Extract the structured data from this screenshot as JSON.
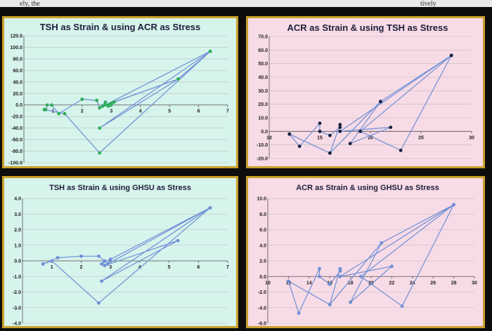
{
  "caption_fragment": "ely, the",
  "caption_fragment_right": "tively",
  "colors": {
    "background": "#0d0d0d",
    "border": "#caa02a",
    "panel_teal": "#d6f3ec",
    "panel_pink": "#f7dbe6",
    "line": "#6f8fd6",
    "marker_green": "#2fae5a",
    "marker_navy": "#16213d",
    "marker_blue": "#6f8fd6",
    "grid": "#bdbdbd"
  },
  "chart_data": [
    {
      "id": "c1",
      "type": "scatter",
      "title": "TSH as Strain & using ACR as Stress",
      "xlim": [
        0,
        7
      ],
      "ylim": [
        -100,
        120
      ],
      "xticks": [
        "1",
        "2",
        "3",
        "4",
        "5",
        "6",
        "7"
      ],
      "xtick_values": [
        1,
        2,
        3,
        4,
        5,
        6,
        7
      ],
      "yticks": [
        "120.0",
        "100.0",
        "80.0",
        "60.0",
        "40.0",
        "20.0",
        "0.0",
        "-20.0",
        "-40.0",
        "-60.0",
        "-80.0",
        "-100.0"
      ],
      "ytick_values": [
        120,
        100,
        80,
        60,
        40,
        20,
        0,
        -20,
        -40,
        -60,
        -80,
        -100
      ],
      "x_axis_at": 0,
      "grid": "horizontal",
      "marker": "green",
      "series": [
        {
          "x": [
            0.75,
            0.8,
            0.95,
            1.2,
            2.0,
            2.5,
            2.6,
            2.8,
            2.7,
            2.9,
            3.0,
            2.9,
            3.0,
            3.1,
            5.3,
            6.4,
            2.8,
            5.3,
            2.6,
            6.4,
            2.6,
            1.4,
            0.7
          ],
          "y": [
            -8,
            0,
            0,
            -15,
            10,
            8,
            -5,
            5,
            -2,
            0,
            3,
            -2,
            0,
            5,
            45,
            93,
            0,
            45,
            -40,
            93,
            -83,
            -15,
            -8
          ]
        }
      ]
    },
    {
      "id": "c2",
      "type": "scatter",
      "title": "ACR as Strain & using TSH as Stress",
      "xlim": [
        10,
        30
      ],
      "ylim": [
        -20,
        70
      ],
      "xticks": [
        "10",
        "15",
        "20",
        "25",
        "30"
      ],
      "xtick_values": [
        10,
        15,
        20,
        25,
        30
      ],
      "yticks": [
        "70.0",
        "60.0",
        "50.0",
        "40.0",
        "30.0",
        "20.0",
        "10.0",
        "0.0",
        "-10.0",
        "-20.0"
      ],
      "ytick_values": [
        70,
        60,
        50,
        40,
        30,
        20,
        10,
        0,
        -10,
        -20
      ],
      "x_axis_at": 0,
      "grid": "horizontal",
      "marker": "navy",
      "series": [
        {
          "x": [
            12,
            13,
            15,
            15,
            16,
            17,
            17,
            16,
            21,
            18,
            22,
            17,
            28,
            23,
            19,
            28,
            21,
            16,
            12
          ],
          "y": [
            -2,
            -11,
            6,
            0,
            -3,
            3,
            5,
            -16,
            22,
            -9,
            3,
            0,
            56,
            -14,
            0,
            56,
            22,
            -16,
            -2
          ]
        }
      ]
    },
    {
      "id": "c3",
      "type": "scatter",
      "title": "TSH as Strain & using GHSU as Stress",
      "xlim": [
        0,
        7
      ],
      "ylim": [
        -4,
        4
      ],
      "xticks": [
        "1",
        "2",
        "3",
        "4",
        "5",
        "6",
        "7"
      ],
      "xtick_values": [
        1,
        2,
        3,
        4,
        5,
        6,
        7
      ],
      "yticks": [
        "4.0",
        "3.0",
        "2.0",
        "1.0",
        "0.0",
        "-1.0",
        "-2.0",
        "-3.0",
        "-4.0"
      ],
      "ytick_values": [
        4,
        3,
        2,
        1,
        0,
        -1,
        -2,
        -3,
        -4
      ],
      "x_axis_at": 0,
      "grid": "horizontal",
      "marker": "blue",
      "series": [
        {
          "x": [
            0.7,
            1.2,
            2.0,
            2.6,
            2.8,
            2.7,
            3.0,
            2.9,
            3.0,
            6.4,
            2.8,
            5.3,
            2.7,
            6.4,
            2.6,
            1.0,
            0.7
          ],
          "y": [
            -0.2,
            0.2,
            0.3,
            0.3,
            0.0,
            -0.2,
            0.1,
            -0.2,
            0.1,
            3.4,
            -0.3,
            1.3,
            -1.3,
            3.4,
            -2.7,
            0.0,
            -0.2
          ]
        }
      ]
    },
    {
      "id": "c4",
      "type": "scatter",
      "title": "ACR as Strain & using GHSU as Stress",
      "xlim": [
        10,
        30
      ],
      "ylim": [
        -6,
        10
      ],
      "xticks": [
        "10",
        "12",
        "14",
        "16",
        "18",
        "20",
        "22",
        "24",
        "26",
        "28",
        "30"
      ],
      "xtick_values": [
        10,
        12,
        14,
        16,
        18,
        20,
        22,
        24,
        26,
        28,
        30
      ],
      "yticks": [
        "10.0",
        "8.0",
        "6.0",
        "4.0",
        "2.0",
        "0.0",
        "-2.0",
        "-4.0",
        "-6.0"
      ],
      "ytick_values": [
        10,
        8,
        6,
        4,
        2,
        0,
        -2,
        -4,
        -6
      ],
      "x_axis_at": 0,
      "grid": "horizontal",
      "marker": "blue",
      "series": [
        {
          "x": [
            12,
            13,
            15,
            15,
            16,
            17,
            17,
            16,
            21,
            18,
            22,
            17,
            28,
            23,
            19,
            28,
            21,
            16,
            12
          ],
          "y": [
            -0.6,
            -4.7,
            1.0,
            0.0,
            -1.0,
            0.7,
            1.0,
            -3.6,
            4.3,
            -3.3,
            1.3,
            0.0,
            9.2,
            -3.8,
            0.0,
            9.2,
            4.3,
            -3.6,
            -0.6
          ]
        }
      ]
    }
  ]
}
